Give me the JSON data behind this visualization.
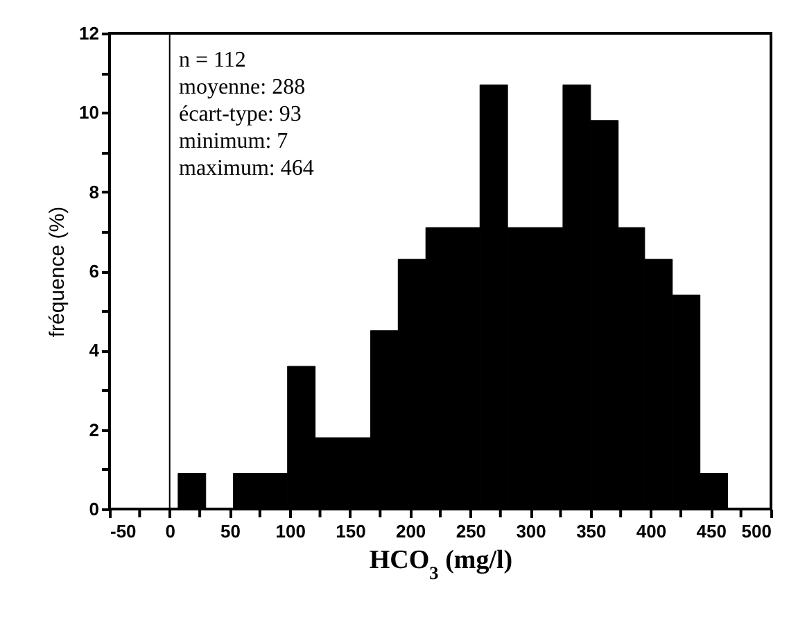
{
  "chart_data": {
    "type": "histogram",
    "xlabel": "HCO$_{3}$ (mg/l)",
    "ylabel": "fréquence (%)",
    "bins": [
      7,
      30,
      53,
      76,
      98,
      121,
      144,
      167,
      190,
      213,
      236,
      258,
      281,
      304,
      327,
      350,
      373,
      395,
      418,
      441,
      464
    ],
    "values": [
      0.9,
      0,
      0.9,
      0.9,
      3.6,
      1.8,
      1.8,
      4.5,
      6.3,
      7.1,
      7.1,
      10.7,
      7.1,
      7.1,
      10.7,
      9.8,
      7.1,
      6.3,
      5.4,
      0.9
    ],
    "color": "#000000",
    "xlim": [
      -50,
      500
    ],
    "xticks": [
      -50,
      {
        "value": -25,
        "label": null
      },
      0,
      {
        "value": 25,
        "label": null
      },
      50,
      {
        "value": 75,
        "label": null
      },
      100,
      {
        "value": 125,
        "label": null
      },
      150,
      {
        "value": 175,
        "label": null
      },
      200,
      {
        "value": 225,
        "label": null
      },
      250,
      {
        "value": 275,
        "label": null
      },
      300,
      {
        "value": 325,
        "label": null
      },
      350,
      {
        "value": 375,
        "label": null
      },
      400,
      {
        "value": 425,
        "label": null
      },
      450,
      {
        "value": 475,
        "label": null
      },
      500
    ],
    "ylim": [
      0,
      12
    ],
    "yticks": [
      0,
      {
        "value": 1,
        "label": null
      },
      2,
      {
        "value": 3,
        "label": null
      },
      4,
      {
        "value": 5,
        "label": null
      },
      6,
      {
        "value": 7,
        "label": null
      },
      8,
      {
        "value": 9,
        "label": null
      },
      10,
      {
        "value": 11,
        "label": null
      },
      12
    ],
    "ref_lines": [
      {
        "axis": "x",
        "value": 0,
        "color": "#000000"
      }
    ],
    "annotations": [
      "n = 112",
      "moyenne: 288",
      "écart-type: 93",
      "minimum: 7",
      "maximum: 464"
    ],
    "grid": false
  }
}
